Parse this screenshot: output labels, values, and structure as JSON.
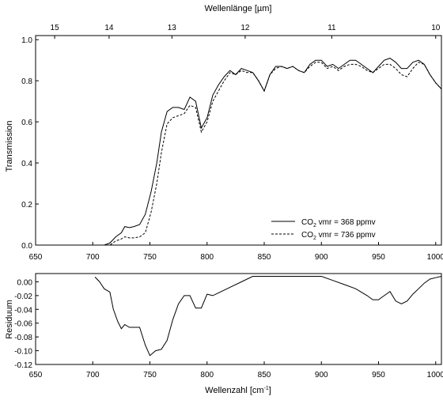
{
  "chart_data": [
    {
      "type": "line",
      "xlabel": "",
      "ylabel": "Transmission",
      "top_axis_label": "Wellenlänge [µm]",
      "xlim": [
        650,
        1005
      ],
      "ylim": [
        0,
        1.02
      ],
      "x_ticks": [
        650,
        700,
        750,
        800,
        850,
        900,
        950,
        1000
      ],
      "x_tick_labels": [
        "650",
        "700",
        "750",
        "800",
        "850",
        "900",
        "950",
        "1000"
      ],
      "y_ticks": [
        0.0,
        0.2,
        0.4,
        0.6,
        0.8,
        1.0
      ],
      "y_tick_labels": [
        "0.0",
        "0.2",
        "0.4",
        "0.6",
        "0.8",
        "1.0"
      ],
      "top_ticks_um": [
        15,
        14,
        13,
        12,
        11,
        10
      ],
      "top_tick_labels": [
        "15",
        "14",
        "13",
        "12",
        "11",
        "10"
      ],
      "series": [
        {
          "name": "CO₂ vmr = 368 ppmv",
          "legend_main": "CO",
          "legend_sub": "2",
          "legend_rest": " vmr = 368 ppmv",
          "style": "solid",
          "x": [
            705,
            710,
            715,
            720,
            725,
            728,
            732,
            736,
            741,
            746,
            751,
            756,
            760,
            765,
            770,
            775,
            780,
            785,
            790,
            795,
            800,
            805,
            810,
            815,
            820,
            825,
            830,
            835,
            840,
            845,
            850,
            855,
            860,
            865,
            870,
            875,
            880,
            885,
            890,
            895,
            900,
            905,
            910,
            915,
            920,
            925,
            930,
            935,
            940,
            945,
            950,
            955,
            960,
            965,
            970,
            975,
            980,
            985,
            990,
            995,
            1000,
            1005
          ],
          "y": [
            0.0,
            0.0,
            0.01,
            0.04,
            0.06,
            0.09,
            0.085,
            0.09,
            0.1,
            0.15,
            0.26,
            0.4,
            0.55,
            0.65,
            0.67,
            0.67,
            0.66,
            0.72,
            0.7,
            0.57,
            0.62,
            0.73,
            0.78,
            0.82,
            0.85,
            0.83,
            0.86,
            0.85,
            0.84,
            0.8,
            0.75,
            0.83,
            0.87,
            0.87,
            0.86,
            0.87,
            0.85,
            0.84,
            0.88,
            0.9,
            0.9,
            0.87,
            0.88,
            0.86,
            0.88,
            0.9,
            0.9,
            0.88,
            0.86,
            0.84,
            0.87,
            0.9,
            0.91,
            0.89,
            0.86,
            0.86,
            0.89,
            0.9,
            0.88,
            0.83,
            0.79,
            0.76
          ]
        },
        {
          "name": "CO₂ vmr = 736 ppmv",
          "legend_main": "CO",
          "legend_sub": "2",
          "legend_rest": " vmr = 736 ppmv",
          "style": "dashed",
          "x": [
            705,
            710,
            715,
            720,
            725,
            728,
            732,
            736,
            741,
            746,
            751,
            756,
            760,
            765,
            770,
            775,
            780,
            785,
            790,
            795,
            800,
            805,
            810,
            815,
            820,
            825,
            830,
            835,
            840,
            845,
            850,
            855,
            860,
            865,
            870,
            875,
            880,
            885,
            890,
            895,
            900,
            905,
            910,
            915,
            920,
            925,
            930,
            935,
            940,
            945,
            950,
            955,
            960,
            965,
            970,
            975,
            980,
            985,
            990,
            995,
            1000,
            1005
          ],
          "y": [
            0.0,
            0.0,
            0.0,
            0.02,
            0.03,
            0.04,
            0.035,
            0.035,
            0.04,
            0.06,
            0.16,
            0.3,
            0.45,
            0.59,
            0.62,
            0.63,
            0.64,
            0.68,
            0.67,
            0.55,
            0.6,
            0.7,
            0.75,
            0.8,
            0.84,
            0.83,
            0.85,
            0.84,
            0.84,
            0.8,
            0.75,
            0.83,
            0.86,
            0.87,
            0.86,
            0.87,
            0.85,
            0.84,
            0.87,
            0.89,
            0.89,
            0.86,
            0.87,
            0.85,
            0.87,
            0.88,
            0.88,
            0.87,
            0.85,
            0.84,
            0.86,
            0.88,
            0.88,
            0.86,
            0.83,
            0.82,
            0.86,
            0.89,
            0.88,
            0.83,
            0.79,
            0.76
          ]
        }
      ],
      "legend_position": "bottom-right"
    },
    {
      "type": "line",
      "xlabel": "Wellenzahl [cm⁻¹]",
      "xlabel_main": "Wellenzahl [cm",
      "xlabel_sup": "-1",
      "xlabel_end": "]",
      "ylabel": "Residuum",
      "xlim": [
        650,
        1005
      ],
      "ylim": [
        -0.12,
        0.012
      ],
      "x_ticks": [
        650,
        700,
        750,
        800,
        850,
        900,
        950,
        1000
      ],
      "x_tick_labels": [
        "650",
        "700",
        "750",
        "800",
        "850",
        "900",
        "950",
        "1000"
      ],
      "y_ticks": [
        0.0,
        -0.02,
        -0.04,
        -0.06,
        -0.08,
        -0.1,
        -0.12
      ],
      "y_tick_labels": [
        "0.00",
        "-0.02",
        "-0.04",
        "-0.06",
        "-0.08",
        "-0.10",
        "-0.12"
      ],
      "series": [
        {
          "style": "solid",
          "x": [
            702,
            706,
            710,
            715,
            718,
            722,
            725,
            728,
            732,
            736,
            741,
            746,
            750,
            755,
            760,
            765,
            770,
            775,
            780,
            785,
            790,
            795,
            800,
            805,
            810,
            820,
            830,
            840,
            850,
            860,
            870,
            880,
            890,
            900,
            910,
            920,
            930,
            940,
            945,
            950,
            955,
            960,
            965,
            970,
            975,
            980,
            985,
            990,
            995,
            1000,
            1005
          ],
          "y": [
            0.007,
            0.0,
            -0.01,
            -0.015,
            -0.04,
            -0.058,
            -0.068,
            -0.062,
            -0.066,
            -0.066,
            -0.066,
            -0.092,
            -0.107,
            -0.1,
            -0.098,
            -0.085,
            -0.055,
            -0.032,
            -0.02,
            -0.02,
            -0.038,
            -0.038,
            -0.018,
            -0.02,
            -0.016,
            -0.008,
            0.0,
            0.008,
            0.008,
            0.008,
            0.008,
            0.008,
            0.008,
            0.008,
            0.002,
            -0.004,
            -0.01,
            -0.02,
            -0.026,
            -0.026,
            -0.02,
            -0.014,
            -0.028,
            -0.032,
            -0.028,
            -0.018,
            -0.01,
            -0.002,
            0.004,
            0.006,
            0.008
          ]
        }
      ]
    }
  ]
}
